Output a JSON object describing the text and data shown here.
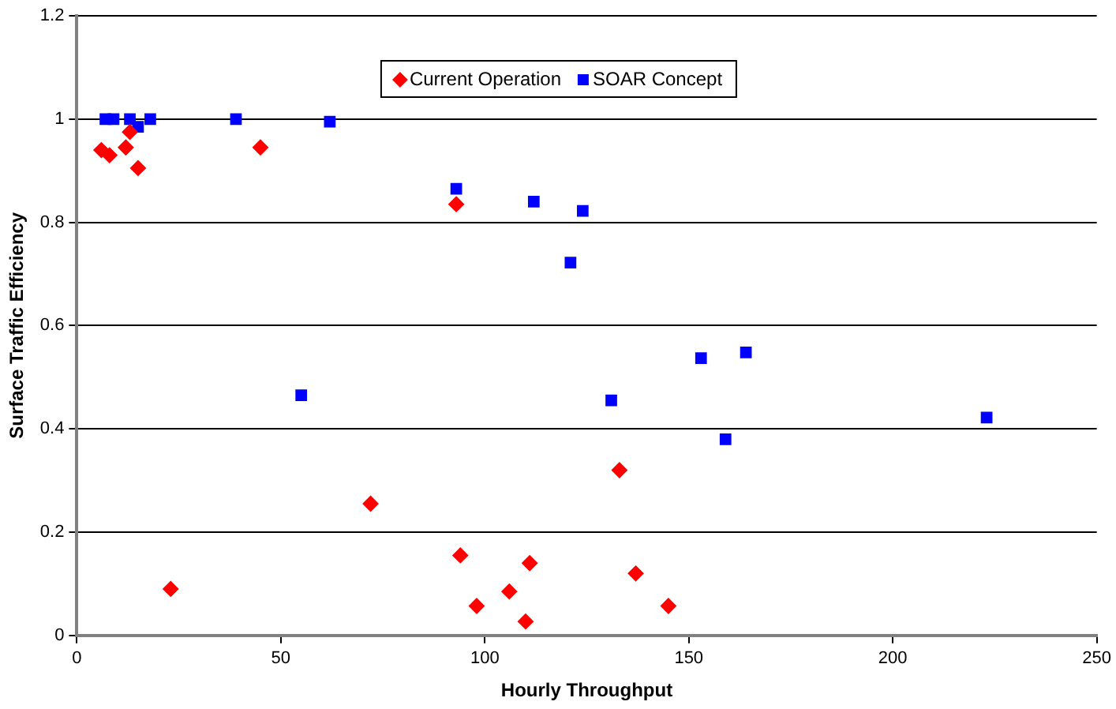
{
  "chart_data": {
    "type": "scatter",
    "xlabel": "Hourly Throughput",
    "ylabel": "Surface Traffic Efficiency",
    "xlim": [
      0,
      250
    ],
    "xticks": [
      0,
      50,
      100,
      150,
      200,
      250
    ],
    "ylim": [
      0,
      1.2
    ],
    "yticks": [
      0,
      0.2,
      0.4,
      0.6,
      0.8,
      1,
      1.2
    ],
    "grid": "y",
    "legend": "top",
    "series": [
      {
        "name": "Current Operation",
        "color": "#ff0000",
        "marker": "diamond",
        "x": [
          6,
          8,
          12,
          13,
          15,
          23,
          45,
          72,
          93,
          94,
          98,
          106,
          110,
          111,
          133,
          137,
          145
        ],
        "values": [
          0.94,
          0.93,
          0.945,
          0.975,
          0.905,
          0.09,
          0.945,
          0.255,
          0.835,
          0.155,
          0.057,
          0.085,
          0.027,
          0.14,
          0.32,
          0.12,
          0.057
        ]
      },
      {
        "name": "SOAR Concept",
        "color": "#0000ff",
        "marker": "square",
        "x": [
          7,
          9,
          13,
          15,
          18,
          39,
          62,
          55,
          93,
          112,
          124,
          121,
          131,
          153,
          159,
          164,
          223
        ],
        "values": [
          1,
          1,
          1,
          0.985,
          1,
          1,
          0.995,
          0.465,
          0.865,
          0.84,
          0.822,
          0.722,
          0.455,
          0.537,
          0.38,
          0.548,
          0.422
        ]
      }
    ]
  }
}
